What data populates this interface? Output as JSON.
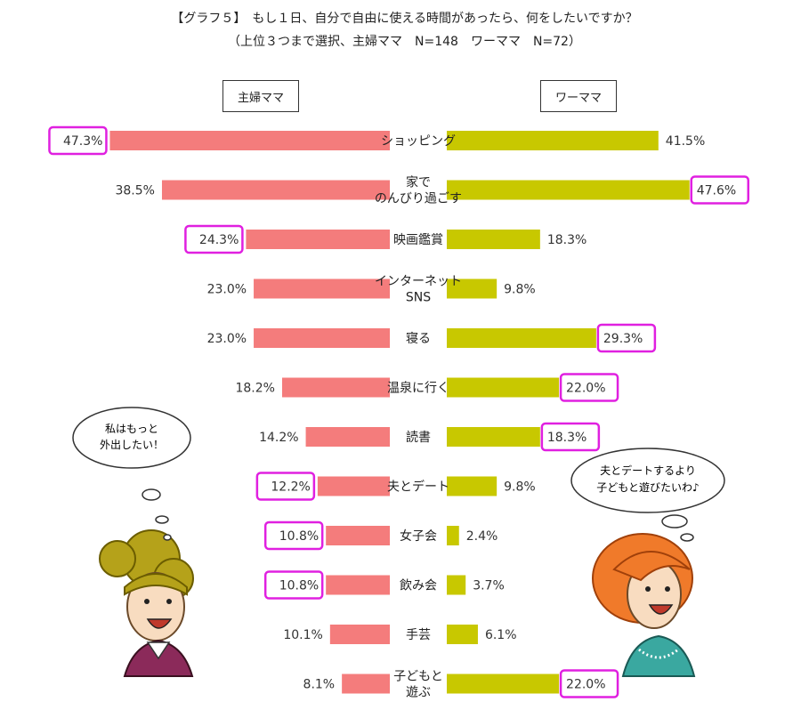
{
  "title_line1": "【グラフ５】　もし１日、自分で自由に使える時間があったら、何をしたいですか？",
  "title_line2": "（上位３つまで選択、主婦ママ　N=148　ワーママ　N=72）",
  "left_header": "主婦ママ",
  "right_header": "ワーママ",
  "bubble_left": [
    "私はもっと",
    "外出したい！"
  ],
  "bubble_right": [
    "夫とデートするより",
    "子どもと遊びたいわ♪"
  ],
  "colors": {
    "left_bar": "#f47c7c",
    "right_bar": "#c8c800",
    "highlight": "#e020e0"
  },
  "chart_data": {
    "type": "bar",
    "orientation": "horizontal-butterfly",
    "categories": [
      [
        "ショッピング"
      ],
      [
        "家で",
        "のんびり過ごす"
      ],
      [
        "映画鑑賞"
      ],
      [
        "インターネット",
        "SNS"
      ],
      [
        "寝る"
      ],
      [
        "温泉に行く"
      ],
      [
        "読書"
      ],
      [
        "夫とデート"
      ],
      [
        "女子会"
      ],
      [
        "飲み会"
      ],
      [
        "手芸"
      ],
      [
        "子どもと",
        "遊ぶ"
      ]
    ],
    "series": [
      {
        "name": "主婦ママ",
        "values": [
          47.3,
          38.5,
          24.3,
          23.0,
          23.0,
          18.2,
          14.2,
          12.2,
          10.8,
          10.8,
          10.1,
          8.1
        ],
        "labels": [
          "47.3%",
          "38.5%",
          "24.3%",
          "23.0%",
          "23.0%",
          "18.2%",
          "14.2%",
          "12.2%",
          "10.8%",
          "10.8%",
          "10.1%",
          "8.1%"
        ],
        "highlighted": [
          true,
          false,
          true,
          false,
          false,
          false,
          false,
          true,
          true,
          true,
          false,
          false
        ]
      },
      {
        "name": "ワーママ",
        "values": [
          41.5,
          47.6,
          18.3,
          9.8,
          29.3,
          22.0,
          18.3,
          9.8,
          2.4,
          3.7,
          6.1,
          22.0
        ],
        "labels": [
          "41.5%",
          "47.6%",
          "18.3%",
          "9.8%",
          "29.3%",
          "22.0%",
          "18.3%",
          "9.8%",
          "2.4%",
          "3.7%",
          "6.1%",
          "22.0%"
        ],
        "highlighted": [
          false,
          true,
          false,
          false,
          true,
          true,
          true,
          false,
          false,
          false,
          false,
          true
        ]
      }
    ],
    "unit": "%"
  }
}
